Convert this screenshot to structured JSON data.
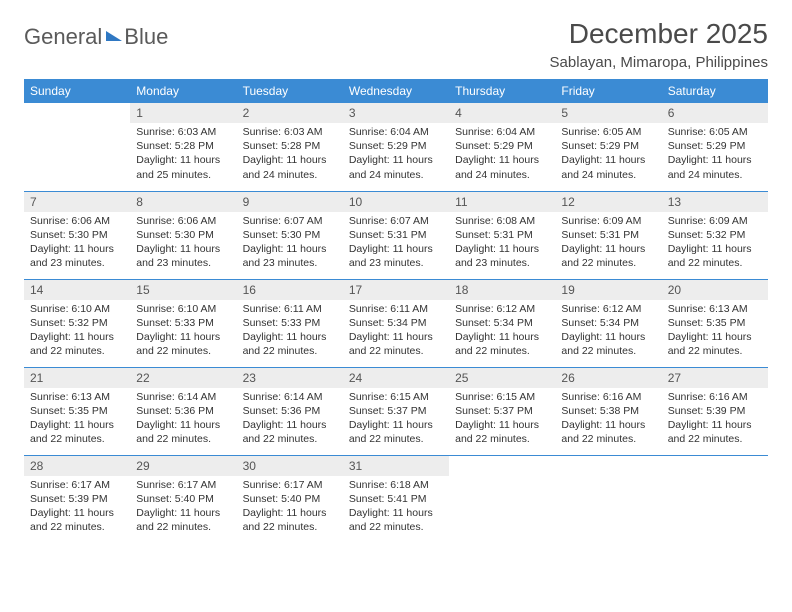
{
  "logo": {
    "word1": "General",
    "word2": "Blue"
  },
  "title": "December 2025",
  "location": "Sablayan, Mimaropa, Philippines",
  "colors": {
    "header_blue": "#3b8bd4",
    "logo_blue": "#2f78c3",
    "day_bg": "#ededed",
    "text": "#333333",
    "page_bg": "#ffffff"
  },
  "weekdays": [
    "Sunday",
    "Monday",
    "Tuesday",
    "Wednesday",
    "Thursday",
    "Friday",
    "Saturday"
  ],
  "weeks": [
    [
      null,
      {
        "n": "1",
        "sr": "Sunrise: 6:03 AM",
        "ss": "Sunset: 5:28 PM",
        "dl": "Daylight: 11 hours and 25 minutes."
      },
      {
        "n": "2",
        "sr": "Sunrise: 6:03 AM",
        "ss": "Sunset: 5:28 PM",
        "dl": "Daylight: 11 hours and 24 minutes."
      },
      {
        "n": "3",
        "sr": "Sunrise: 6:04 AM",
        "ss": "Sunset: 5:29 PM",
        "dl": "Daylight: 11 hours and 24 minutes."
      },
      {
        "n": "4",
        "sr": "Sunrise: 6:04 AM",
        "ss": "Sunset: 5:29 PM",
        "dl": "Daylight: 11 hours and 24 minutes."
      },
      {
        "n": "5",
        "sr": "Sunrise: 6:05 AM",
        "ss": "Sunset: 5:29 PM",
        "dl": "Daylight: 11 hours and 24 minutes."
      },
      {
        "n": "6",
        "sr": "Sunrise: 6:05 AM",
        "ss": "Sunset: 5:29 PM",
        "dl": "Daylight: 11 hours and 24 minutes."
      }
    ],
    [
      {
        "n": "7",
        "sr": "Sunrise: 6:06 AM",
        "ss": "Sunset: 5:30 PM",
        "dl": "Daylight: 11 hours and 23 minutes."
      },
      {
        "n": "8",
        "sr": "Sunrise: 6:06 AM",
        "ss": "Sunset: 5:30 PM",
        "dl": "Daylight: 11 hours and 23 minutes."
      },
      {
        "n": "9",
        "sr": "Sunrise: 6:07 AM",
        "ss": "Sunset: 5:30 PM",
        "dl": "Daylight: 11 hours and 23 minutes."
      },
      {
        "n": "10",
        "sr": "Sunrise: 6:07 AM",
        "ss": "Sunset: 5:31 PM",
        "dl": "Daylight: 11 hours and 23 minutes."
      },
      {
        "n": "11",
        "sr": "Sunrise: 6:08 AM",
        "ss": "Sunset: 5:31 PM",
        "dl": "Daylight: 11 hours and 23 minutes."
      },
      {
        "n": "12",
        "sr": "Sunrise: 6:09 AM",
        "ss": "Sunset: 5:31 PM",
        "dl": "Daylight: 11 hours and 22 minutes."
      },
      {
        "n": "13",
        "sr": "Sunrise: 6:09 AM",
        "ss": "Sunset: 5:32 PM",
        "dl": "Daylight: 11 hours and 22 minutes."
      }
    ],
    [
      {
        "n": "14",
        "sr": "Sunrise: 6:10 AM",
        "ss": "Sunset: 5:32 PM",
        "dl": "Daylight: 11 hours and 22 minutes."
      },
      {
        "n": "15",
        "sr": "Sunrise: 6:10 AM",
        "ss": "Sunset: 5:33 PM",
        "dl": "Daylight: 11 hours and 22 minutes."
      },
      {
        "n": "16",
        "sr": "Sunrise: 6:11 AM",
        "ss": "Sunset: 5:33 PM",
        "dl": "Daylight: 11 hours and 22 minutes."
      },
      {
        "n": "17",
        "sr": "Sunrise: 6:11 AM",
        "ss": "Sunset: 5:34 PM",
        "dl": "Daylight: 11 hours and 22 minutes."
      },
      {
        "n": "18",
        "sr": "Sunrise: 6:12 AM",
        "ss": "Sunset: 5:34 PM",
        "dl": "Daylight: 11 hours and 22 minutes."
      },
      {
        "n": "19",
        "sr": "Sunrise: 6:12 AM",
        "ss": "Sunset: 5:34 PM",
        "dl": "Daylight: 11 hours and 22 minutes."
      },
      {
        "n": "20",
        "sr": "Sunrise: 6:13 AM",
        "ss": "Sunset: 5:35 PM",
        "dl": "Daylight: 11 hours and 22 minutes."
      }
    ],
    [
      {
        "n": "21",
        "sr": "Sunrise: 6:13 AM",
        "ss": "Sunset: 5:35 PM",
        "dl": "Daylight: 11 hours and 22 minutes."
      },
      {
        "n": "22",
        "sr": "Sunrise: 6:14 AM",
        "ss": "Sunset: 5:36 PM",
        "dl": "Daylight: 11 hours and 22 minutes."
      },
      {
        "n": "23",
        "sr": "Sunrise: 6:14 AM",
        "ss": "Sunset: 5:36 PM",
        "dl": "Daylight: 11 hours and 22 minutes."
      },
      {
        "n": "24",
        "sr": "Sunrise: 6:15 AM",
        "ss": "Sunset: 5:37 PM",
        "dl": "Daylight: 11 hours and 22 minutes."
      },
      {
        "n": "25",
        "sr": "Sunrise: 6:15 AM",
        "ss": "Sunset: 5:37 PM",
        "dl": "Daylight: 11 hours and 22 minutes."
      },
      {
        "n": "26",
        "sr": "Sunrise: 6:16 AM",
        "ss": "Sunset: 5:38 PM",
        "dl": "Daylight: 11 hours and 22 minutes."
      },
      {
        "n": "27",
        "sr": "Sunrise: 6:16 AM",
        "ss": "Sunset: 5:39 PM",
        "dl": "Daylight: 11 hours and 22 minutes."
      }
    ],
    [
      {
        "n": "28",
        "sr": "Sunrise: 6:17 AM",
        "ss": "Sunset: 5:39 PM",
        "dl": "Daylight: 11 hours and 22 minutes."
      },
      {
        "n": "29",
        "sr": "Sunrise: 6:17 AM",
        "ss": "Sunset: 5:40 PM",
        "dl": "Daylight: 11 hours and 22 minutes."
      },
      {
        "n": "30",
        "sr": "Sunrise: 6:17 AM",
        "ss": "Sunset: 5:40 PM",
        "dl": "Daylight: 11 hours and 22 minutes."
      },
      {
        "n": "31",
        "sr": "Sunrise: 6:18 AM",
        "ss": "Sunset: 5:41 PM",
        "dl": "Daylight: 11 hours and 22 minutes."
      },
      null,
      null,
      null
    ]
  ]
}
